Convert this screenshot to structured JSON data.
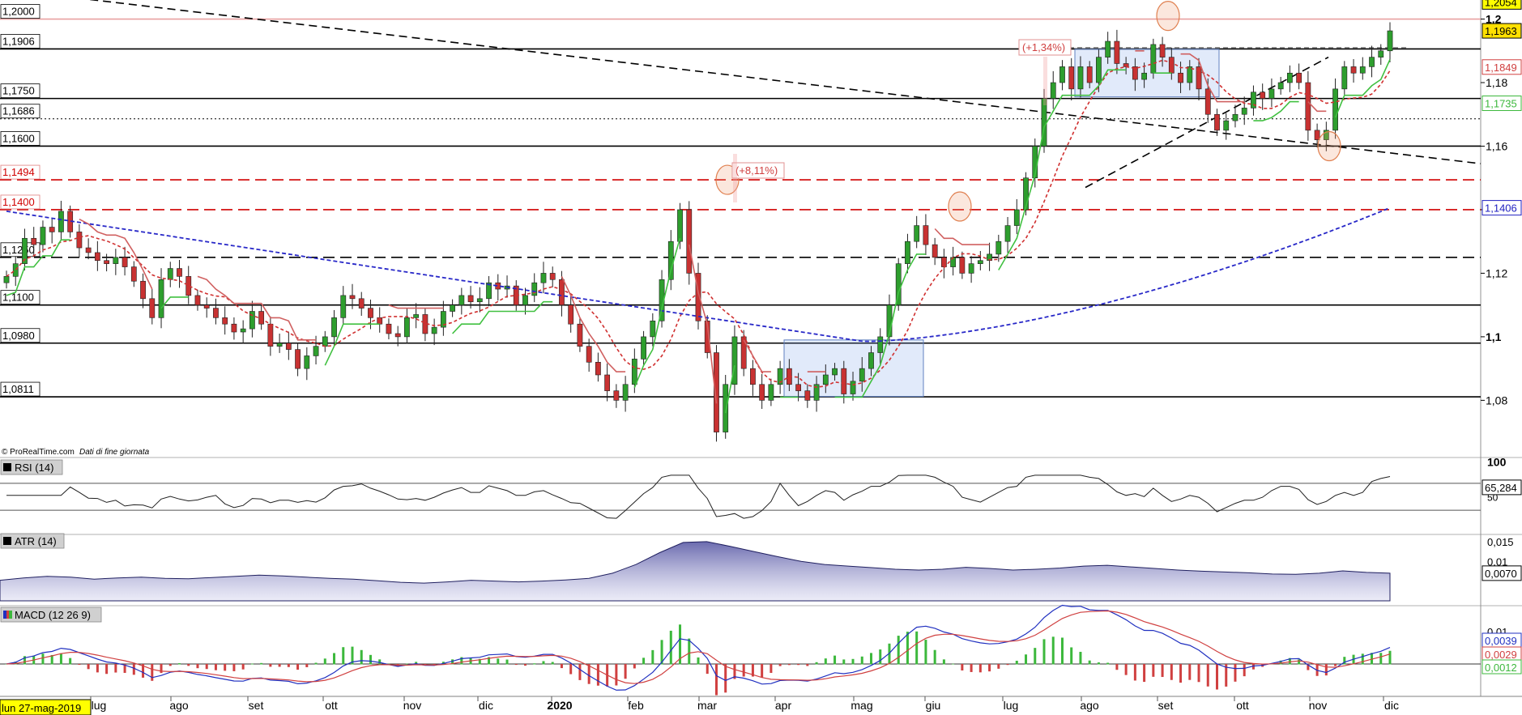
{
  "source": "© ProRealTime.com",
  "source_note": "Dati di fine giornata",
  "chart_data": {
    "type": "candlestick",
    "x_start": "lun 27-mag-2019",
    "x_labels": [
      "lug",
      "ago",
      "set",
      "ott",
      "nov",
      "dic",
      "2020",
      "feb",
      "mar",
      "apr",
      "mag",
      "giu",
      "lug",
      "ago",
      "set",
      "ott",
      "nov",
      "dic"
    ],
    "price_axis": {
      "ylim": [
        1.062,
        1.206
      ],
      "ticks": [
        "1,2",
        "1,18",
        "1,16",
        "1,14",
        "1,12",
        "1,1",
        "1,08"
      ],
      "badges": [
        {
          "text": "1,2054",
          "bg": "#ffff00",
          "fg": "#000000",
          "border": "#000000",
          "value": 1.2054
        },
        {
          "text": "1,1963",
          "bg": "#ffe000",
          "fg": "#000000",
          "border": "#000000",
          "value": 1.1963
        },
        {
          "text": "1,1849",
          "bg": "#ffffff",
          "fg": "#d04040",
          "border": "#d04040",
          "value": 1.1849
        },
        {
          "text": "1,1735",
          "bg": "#ffffff",
          "fg": "#3cb83c",
          "border": "#3cb83c",
          "value": 1.1735
        },
        {
          "text": "1,1406",
          "bg": "#ffffff",
          "fg": "#2020c0",
          "border": "#2020c0",
          "value": 1.1406
        }
      ]
    },
    "levels": [
      {
        "label": "1,2000",
        "value": 1.2,
        "style": "solid",
        "color": "#e8a0a0"
      },
      {
        "label": "1,1906",
        "value": 1.1906,
        "style": "solid",
        "color": "#000000"
      },
      {
        "label": "1,1750",
        "value": 1.175,
        "style": "solid",
        "color": "#000000"
      },
      {
        "label": "1,1686",
        "value": 1.1686,
        "style": "dotted",
        "color": "#000000"
      },
      {
        "label": "1,1600",
        "value": 1.16,
        "style": "solid",
        "color": "#000000"
      },
      {
        "label": "1,1494",
        "value": 1.1494,
        "style": "dashed",
        "color": "#d00000"
      },
      {
        "label": "1,1400",
        "value": 1.14,
        "style": "dashed",
        "color": "#d00000"
      },
      {
        "label": "1,1250",
        "value": 1.125,
        "style": "dashed",
        "color": "#000000"
      },
      {
        "label": "1,1100",
        "value": 1.11,
        "style": "solid",
        "color": "#000000"
      },
      {
        "label": "1,0980",
        "value": 1.098,
        "style": "solid",
        "color": "#000000"
      },
      {
        "label": "1,0811",
        "value": 1.0811,
        "style": "solid",
        "color": "#000000"
      }
    ],
    "annotations": [
      "(+8,11%)",
      "(+1,34%)"
    ],
    "closes": [
      1.119,
      1.123,
      1.131,
      1.129,
      1.1345,
      1.133,
      1.1395,
      1.133,
      1.128,
      1.1265,
      1.124,
      1.123,
      1.125,
      1.122,
      1.1175,
      1.112,
      1.106,
      1.118,
      1.1215,
      1.119,
      1.113,
      1.11,
      1.109,
      1.106,
      1.104,
      1.1015,
      1.1025,
      1.108,
      1.104,
      1.097,
      1.098,
      1.096,
      1.09,
      1.094,
      1.097,
      1.1,
      1.106,
      1.113,
      1.112,
      1.109,
      1.106,
      1.104,
      1.101,
      1.1,
      1.106,
      1.107,
      1.101,
      1.103,
      1.108,
      1.11,
      1.113,
      1.111,
      1.112,
      1.117,
      1.115,
      1.116,
      1.11,
      1.113,
      1.117,
      1.12,
      1.118,
      1.11,
      1.104,
      1.097,
      1.092,
      1.088,
      1.083,
      1.08,
      1.085,
      1.093,
      1.1,
      1.105,
      1.118,
      1.13,
      1.14,
      1.12,
      1.105,
      1.095,
      1.07,
      1.085,
      1.1,
      1.09,
      1.085,
      1.08,
      1.085,
      1.09,
      1.085,
      1.083,
      1.08,
      1.085,
      1.088,
      1.09,
      1.082,
      1.086,
      1.09,
      1.095,
      1.1,
      1.11,
      1.123,
      1.13,
      1.135,
      1.129,
      1.125,
      1.122,
      1.125,
      1.12,
      1.123,
      1.124,
      1.126,
      1.13,
      1.135,
      1.14,
      1.15,
      1.16,
      1.175,
      1.18,
      1.185,
      1.178,
      1.185,
      1.18,
      1.188,
      1.193,
      1.186,
      1.185,
      1.181,
      1.183,
      1.192,
      1.188,
      1.183,
      1.18,
      1.185,
      1.178,
      1.17,
      1.165,
      1.168,
      1.17,
      1.172,
      1.177,
      1.175,
      1.178,
      1.18,
      1.183,
      1.18,
      1.165,
      1.162,
      1.165,
      1.178,
      1.185,
      1.183,
      1.185,
      1.188,
      1.19,
      1.1963
    ],
    "series": [
      {
        "name": "RSI (14)",
        "last": "65,284",
        "ylim": [
          0,
          100
        ],
        "ticks": [
          "100",
          "50"
        ],
        "levels": [
          70,
          30
        ]
      },
      {
        "name": "ATR (14)",
        "last": "0,0070",
        "ticks": [
          "0,015",
          "0,01"
        ],
        "values": [
          0.0052,
          0.0058,
          0.0062,
          0.006,
          0.0055,
          0.0058,
          0.006,
          0.0057,
          0.0056,
          0.0059,
          0.0062,
          0.0065,
          0.0063,
          0.006,
          0.0057,
          0.0055,
          0.0051,
          0.0047,
          0.0045,
          0.0048,
          0.0052,
          0.005,
          0.0048,
          0.005,
          0.0053,
          0.0057,
          0.007,
          0.0092,
          0.0122,
          0.0148,
          0.015,
          0.0138,
          0.0125,
          0.0112,
          0.01,
          0.0092,
          0.0088,
          0.0084,
          0.008,
          0.0078,
          0.008,
          0.0085,
          0.0082,
          0.0078,
          0.008,
          0.0083,
          0.0088,
          0.009,
          0.0086,
          0.0082,
          0.0078,
          0.0075,
          0.0073,
          0.0071,
          0.0068,
          0.0067,
          0.007,
          0.0076,
          0.0072,
          0.007
        ]
      },
      {
        "name": "MACD (12 26 9)",
        "last_values": [
          "0,0039",
          "0,0029",
          "0,0012"
        ],
        "ticks": [
          "0,01"
        ],
        "colors": [
          "#2030c0",
          "#d04040",
          "#3cb83c"
        ]
      }
    ]
  }
}
